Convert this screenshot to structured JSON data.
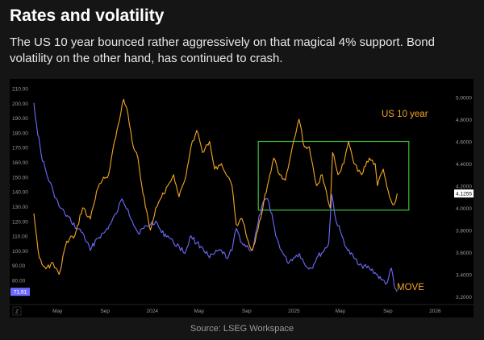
{
  "header": {
    "title": "Rates and volatility",
    "subtitle": "The US 10 year bounced rather aggressively on that magical 4% support. Bond volatility on the other hand, has continued to crash."
  },
  "footer": {
    "source": "Source: LSEG Workspace"
  },
  "colors": {
    "background": "#151515",
    "plot_background": "#000000",
    "us10y": "#f5a623",
    "move": "#6d6bff",
    "box": "#3cbf3c",
    "axis_text": "#9b9b9b"
  },
  "chart_data": {
    "type": "line",
    "title": "",
    "x_tick_labels": [
      "May",
      "Sep",
      "2024",
      "May",
      "Sep",
      "2025",
      "May",
      "Sep",
      "2026"
    ],
    "x_corner_label": "Z",
    "left_axis": {
      "label": "",
      "ylim": [
        65,
        213
      ],
      "ticks": [
        "210.00",
        "200.00",
        "190.00",
        "180.00",
        "170.00",
        "160.00",
        "150.00",
        "140.00",
        "130.00",
        "120.00",
        "110.00",
        "100.00",
        "90.00",
        "80.00"
      ]
    },
    "right_axis": {
      "label": "",
      "ylim": [
        3.15,
        5.12
      ],
      "ticks": [
        "5.0000",
        "4.8000",
        "4.6000",
        "4.4000",
        "4.2000",
        "4.0000",
        "3.8000",
        "3.6000",
        "3.4000",
        "3.2000"
      ]
    },
    "series": [
      {
        "name": "US 10 year",
        "axis": "right",
        "last_value_label": "4.1255",
        "points": [
          [
            "2023-03-01",
            3.95
          ],
          [
            "2023-03-15",
            3.55
          ],
          [
            "2023-04-01",
            3.45
          ],
          [
            "2023-04-20",
            3.5
          ],
          [
            "2023-05-05",
            3.4
          ],
          [
            "2023-05-25",
            3.7
          ],
          [
            "2023-06-15",
            3.75
          ],
          [
            "2023-07-05",
            4.0
          ],
          [
            "2023-07-25",
            3.9
          ],
          [
            "2023-08-10",
            4.15
          ],
          [
            "2023-08-25",
            4.25
          ],
          [
            "2023-09-10",
            4.3
          ],
          [
            "2023-09-25",
            4.6
          ],
          [
            "2023-10-05",
            4.75
          ],
          [
            "2023-10-19",
            4.98
          ],
          [
            "2023-10-30",
            4.85
          ],
          [
            "2023-11-10",
            4.6
          ],
          [
            "2023-11-25",
            4.45
          ],
          [
            "2023-12-05",
            4.2
          ],
          [
            "2023-12-27",
            3.8
          ],
          [
            "2024-01-10",
            4.0
          ],
          [
            "2024-01-25",
            4.1
          ],
          [
            "2024-02-10",
            4.2
          ],
          [
            "2024-02-25",
            4.3
          ],
          [
            "2024-03-10",
            4.1
          ],
          [
            "2024-03-25",
            4.25
          ],
          [
            "2024-04-10",
            4.55
          ],
          [
            "2024-04-25",
            4.7
          ],
          [
            "2024-05-10",
            4.5
          ],
          [
            "2024-05-28",
            4.6
          ],
          [
            "2024-06-10",
            4.35
          ],
          [
            "2024-06-28",
            4.4
          ],
          [
            "2024-07-10",
            4.3
          ],
          [
            "2024-07-25",
            4.2
          ],
          [
            "2024-08-05",
            3.85
          ],
          [
            "2024-08-20",
            3.9
          ],
          [
            "2024-09-05",
            3.7
          ],
          [
            "2024-09-16",
            3.62
          ],
          [
            "2024-09-30",
            3.8
          ],
          [
            "2024-10-15",
            4.05
          ],
          [
            "2024-10-31",
            4.3
          ],
          [
            "2024-11-10",
            4.45
          ],
          [
            "2024-11-25",
            4.3
          ],
          [
            "2024-12-10",
            4.25
          ],
          [
            "2024-12-31",
            4.6
          ],
          [
            "2025-01-14",
            4.8
          ],
          [
            "2025-01-28",
            4.55
          ],
          [
            "2025-02-10",
            4.55
          ],
          [
            "2025-03-01",
            4.2
          ],
          [
            "2025-03-15",
            4.3
          ],
          [
            "2025-04-05",
            4.0
          ],
          [
            "2025-04-11",
            4.5
          ],
          [
            "2025-04-25",
            4.3
          ],
          [
            "2025-05-10",
            4.4
          ],
          [
            "2025-05-22",
            4.6
          ],
          [
            "2025-06-05",
            4.4
          ],
          [
            "2025-06-25",
            4.3
          ],
          [
            "2025-07-15",
            4.45
          ],
          [
            "2025-07-30",
            4.4
          ],
          [
            "2025-08-05",
            4.2
          ],
          [
            "2025-08-20",
            4.35
          ],
          [
            "2025-09-05",
            4.1
          ],
          [
            "2025-09-17",
            4.03
          ],
          [
            "2025-09-25",
            4.13
          ]
        ]
      },
      {
        "name": "MOVE",
        "axis": "left",
        "last_value_label": "71.91",
        "points": [
          [
            "2023-03-01",
            200
          ],
          [
            "2023-03-08",
            185
          ],
          [
            "2023-03-20",
            165
          ],
          [
            "2023-04-05",
            150
          ],
          [
            "2023-04-20",
            140
          ],
          [
            "2023-05-05",
            130
          ],
          [
            "2023-05-20",
            125
          ],
          [
            "2023-06-05",
            120
          ],
          [
            "2023-06-20",
            115
          ],
          [
            "2023-07-05",
            112
          ],
          [
            "2023-07-25",
            100
          ],
          [
            "2023-08-10",
            108
          ],
          [
            "2023-08-30",
            112
          ],
          [
            "2023-09-15",
            118
          ],
          [
            "2023-09-30",
            125
          ],
          [
            "2023-10-15",
            135
          ],
          [
            "2023-10-30",
            128
          ],
          [
            "2023-11-10",
            120
          ],
          [
            "2023-11-25",
            112
          ],
          [
            "2023-12-10",
            115
          ],
          [
            "2023-12-28",
            118
          ],
          [
            "2024-01-10",
            120
          ],
          [
            "2024-01-25",
            112
          ],
          [
            "2024-02-10",
            110
          ],
          [
            "2024-02-25",
            105
          ],
          [
            "2024-03-10",
            103
          ],
          [
            "2024-03-25",
            98
          ],
          [
            "2024-04-10",
            110
          ],
          [
            "2024-04-25",
            105
          ],
          [
            "2024-05-10",
            102
          ],
          [
            "2024-05-28",
            95
          ],
          [
            "2024-06-10",
            98
          ],
          [
            "2024-06-28",
            100
          ],
          [
            "2024-07-10",
            95
          ],
          [
            "2024-07-25",
            100
          ],
          [
            "2024-08-05",
            115
          ],
          [
            "2024-08-20",
            105
          ],
          [
            "2024-09-05",
            102
          ],
          [
            "2024-09-16",
            100
          ],
          [
            "2024-09-30",
            118
          ],
          [
            "2024-10-10",
            130
          ],
          [
            "2024-10-25",
            135
          ],
          [
            "2024-11-05",
            125
          ],
          [
            "2024-11-15",
            110
          ],
          [
            "2024-11-30",
            100
          ],
          [
            "2024-12-15",
            92
          ],
          [
            "2024-12-31",
            95
          ],
          [
            "2025-01-15",
            98
          ],
          [
            "2025-01-30",
            90
          ],
          [
            "2025-02-15",
            88
          ],
          [
            "2025-03-01",
            95
          ],
          [
            "2025-03-20",
            100
          ],
          [
            "2025-04-01",
            105
          ],
          [
            "2025-04-09",
            138
          ],
          [
            "2025-04-20",
            120
          ],
          [
            "2025-05-05",
            110
          ],
          [
            "2025-05-20",
            100
          ],
          [
            "2025-06-05",
            95
          ],
          [
            "2025-06-25",
            90
          ],
          [
            "2025-07-15",
            88
          ],
          [
            "2025-07-30",
            85
          ],
          [
            "2025-08-15",
            80
          ],
          [
            "2025-08-30",
            78
          ],
          [
            "2025-09-10",
            88
          ],
          [
            "2025-09-18",
            75
          ],
          [
            "2025-09-25",
            72
          ]
        ]
      }
    ],
    "annotations": [
      {
        "type": "text",
        "label": "US 10 year",
        "series": "US 10 year"
      },
      {
        "type": "text",
        "label": "MOVE",
        "series": "MOVE"
      },
      {
        "type": "rectangle",
        "x_range": [
          "2024-10-01",
          "2025-10-25"
        ],
        "y_range_right": [
          3.98,
          4.6
        ]
      }
    ]
  }
}
